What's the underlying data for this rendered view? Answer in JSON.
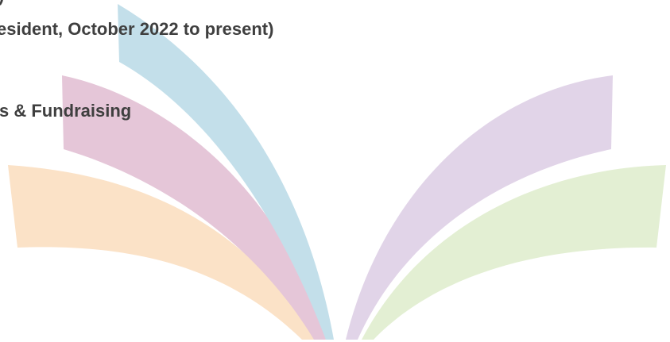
{
  "content": {
    "clipped_line_top": ")",
    "line_1": "esident, October 2022 to present)",
    "line_2": "s & Fundraising"
  },
  "logo": {
    "colors": {
      "blue": "#c3dfea",
      "pink": "#e5c6d8",
      "orange": "#fbe2c7",
      "purple": "#e1d4e8",
      "green": "#e3efd3"
    }
  }
}
